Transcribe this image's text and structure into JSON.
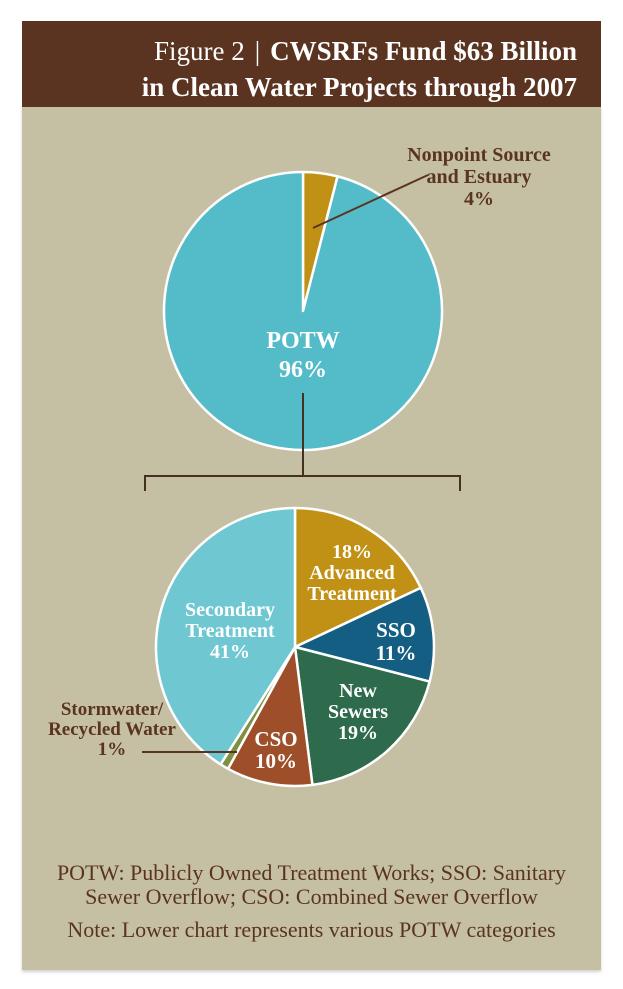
{
  "colors": {
    "page_bg": "#ffffff",
    "card_bg": "#c5bfa3",
    "header_bg": "#5a3421",
    "text_brown": "#5a3421",
    "line_brown": "#443122",
    "label_white": "#ffffff"
  },
  "header": {
    "figure_label": "Figure 2",
    "separator": "|",
    "title_line1": "CWSRFs Fund $63 Billion",
    "title_line2": "in Clean Water Projects through 2007"
  },
  "chart_data": [
    {
      "type": "pie",
      "units": "%",
      "start_angle_deg": 0,
      "direction": "clockwise",
      "legend_position": "labels-on-and-around-chart",
      "slices": [
        {
          "label": "Nonpoint Source and Estuary",
          "value": 4,
          "color": "#c19115"
        },
        {
          "label": "POTW",
          "value": 96,
          "color": "#54bcc9"
        }
      ]
    },
    {
      "type": "pie",
      "units": "%",
      "start_angle_deg": 0,
      "direction": "clockwise",
      "legend_position": "labels-on-and-around-chart",
      "slices": [
        {
          "label": "Advanced Treatment",
          "value": 18,
          "color": "#c19115"
        },
        {
          "label": "SSO",
          "value": 11,
          "color": "#145e83"
        },
        {
          "label": "New Sewers",
          "value": 19,
          "color": "#2e6b4c"
        },
        {
          "label": "CSO",
          "value": 10,
          "color": "#9e4f2a"
        },
        {
          "label": "Stormwater/Recycled Water",
          "value": 1,
          "color": "#7f9140"
        },
        {
          "label": "Secondary Treatment",
          "value": 41,
          "color": "#6fc7d1"
        }
      ]
    }
  ],
  "labels": {
    "nonpoint": {
      "line1": "Nonpoint Source",
      "line2": "and Estuary",
      "pct": "4%"
    },
    "potw": {
      "name": "POTW",
      "pct": "96%"
    },
    "advanced": {
      "pct": "18%",
      "line1": "Advanced",
      "line2": "Treatment"
    },
    "sso": {
      "name": "SSO",
      "pct": "11%"
    },
    "new_sewers": {
      "line1": "New",
      "line2": "Sewers",
      "pct": "19%"
    },
    "cso": {
      "name": "CSO",
      "pct": "10%"
    },
    "secondary": {
      "line1": "Secondary",
      "line2": "Treatment",
      "pct": "41%"
    },
    "stormwater": {
      "line1": "Stormwater/",
      "line2": "Recycled Water",
      "pct": "1%"
    }
  },
  "footer": {
    "acronyms_line1": "POTW: Publicly Owned Treatment Works; SSO: Sanitary",
    "acronyms_line2": "Sewer Overflow; CSO: Combined Sewer Overflow",
    "note": "Note: Lower chart represents various POTW categories"
  }
}
